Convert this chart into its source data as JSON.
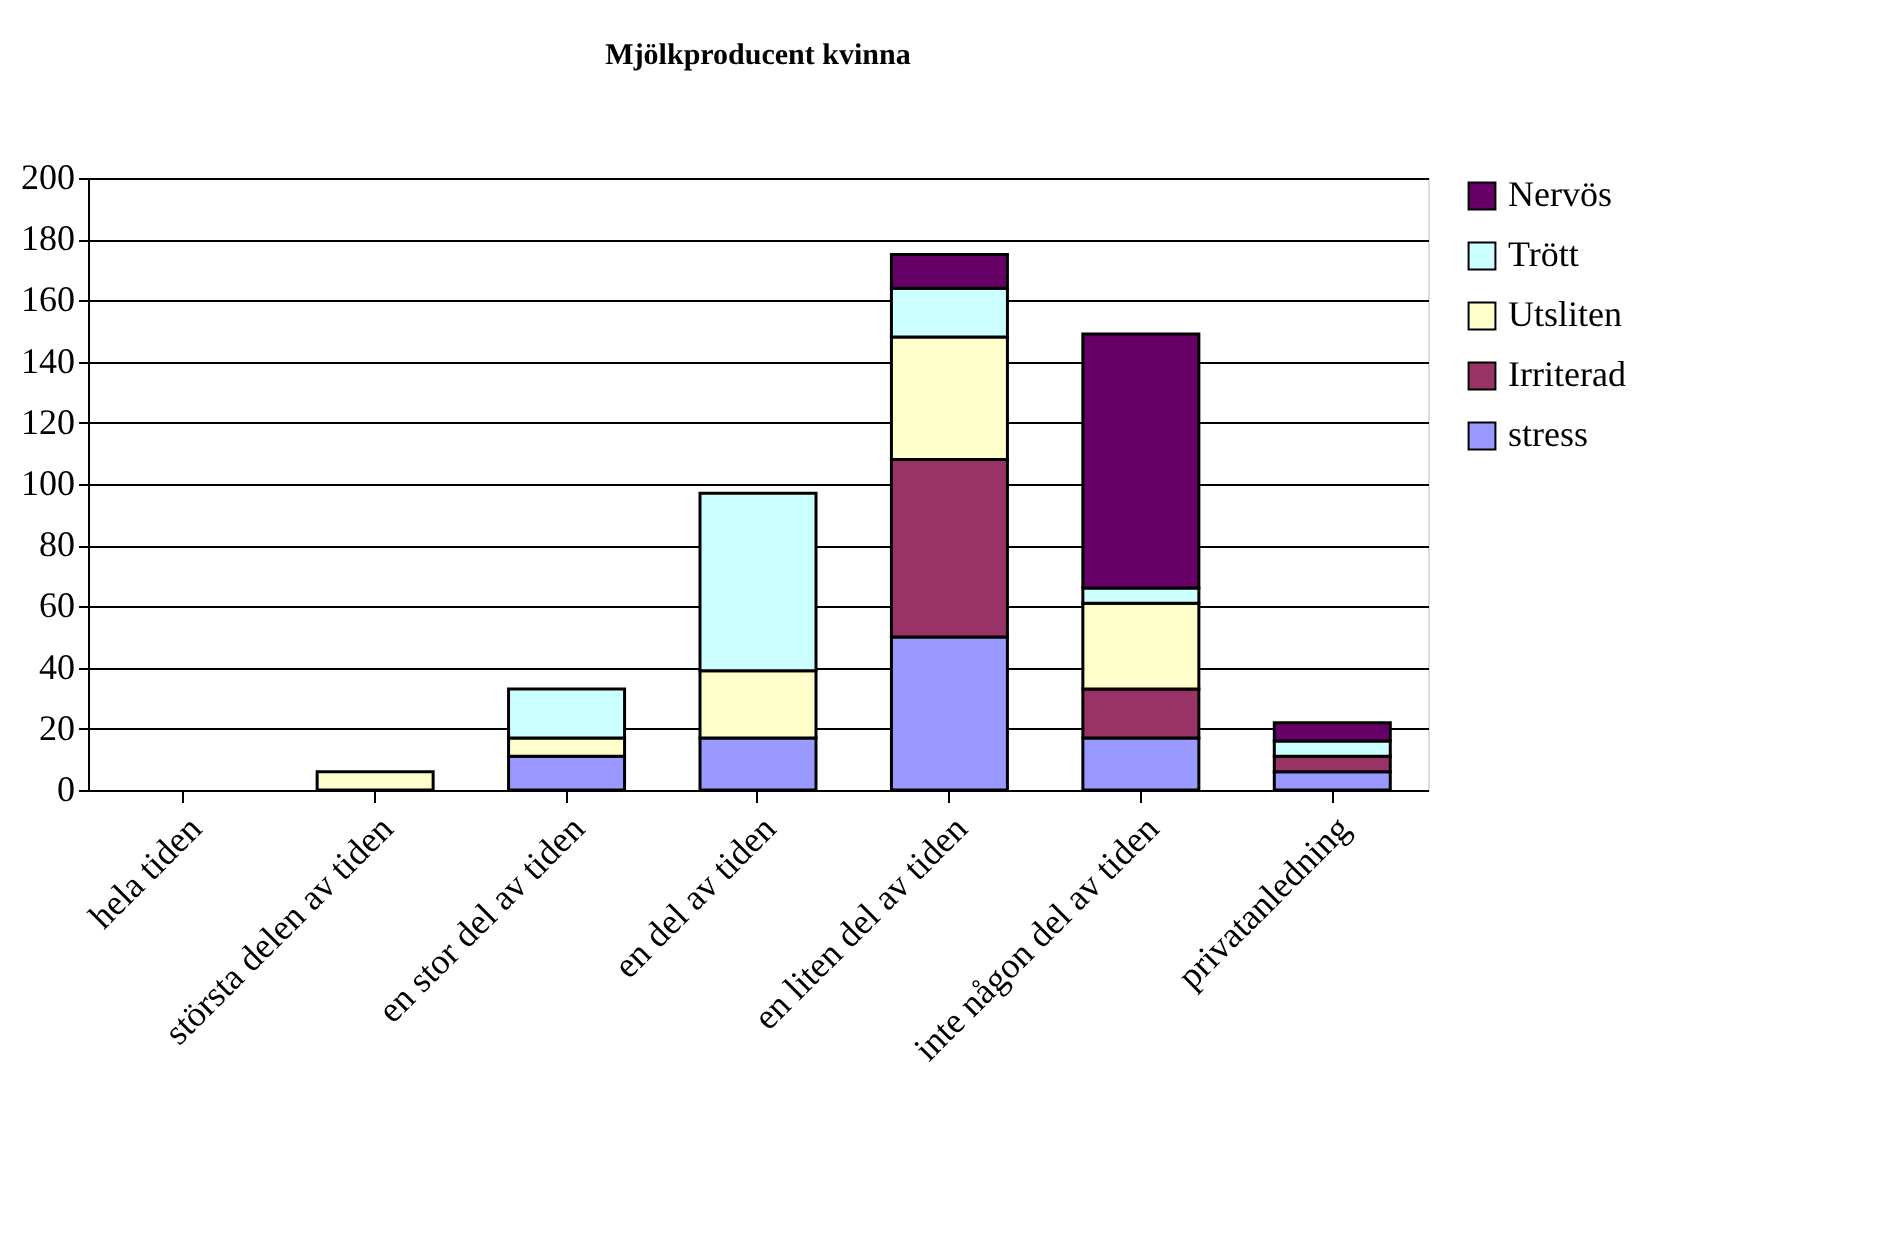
{
  "chart_data": {
    "type": "bar",
    "title": "Mjölkproducent kvinna",
    "stacked": true,
    "categories": [
      "hela tiden",
      "största delen av tiden",
      "en stor del av tiden",
      "en del av tiden",
      "en liten del av tiden",
      "inte någon del av tiden",
      "privatanledning"
    ],
    "series": [
      {
        "name": "stress",
        "color": "#9999ff",
        "values": [
          null,
          null,
          11,
          17,
          50,
          17,
          6
        ]
      },
      {
        "name": "Irriterad",
        "color": "#993366",
        "values": [
          null,
          null,
          null,
          null,
          58,
          16,
          5
        ]
      },
      {
        "name": "Utsliten",
        "color": "#ffffcc",
        "values": [
          null,
          6,
          6,
          22,
          40,
          28,
          null
        ]
      },
      {
        "name": "Trött",
        "color": "#ccffff",
        "values": [
          null,
          null,
          16,
          58,
          16,
          5,
          5
        ]
      },
      {
        "name": "Nervös",
        "color": "#660066",
        "values": [
          null,
          null,
          null,
          null,
          11,
          83,
          6
        ]
      }
    ],
    "ylim": [
      0,
      200
    ],
    "yticks": [
      0,
      20,
      40,
      60,
      80,
      100,
      120,
      140,
      160,
      180,
      200
    ],
    "grid": "y",
    "legend": "right"
  }
}
